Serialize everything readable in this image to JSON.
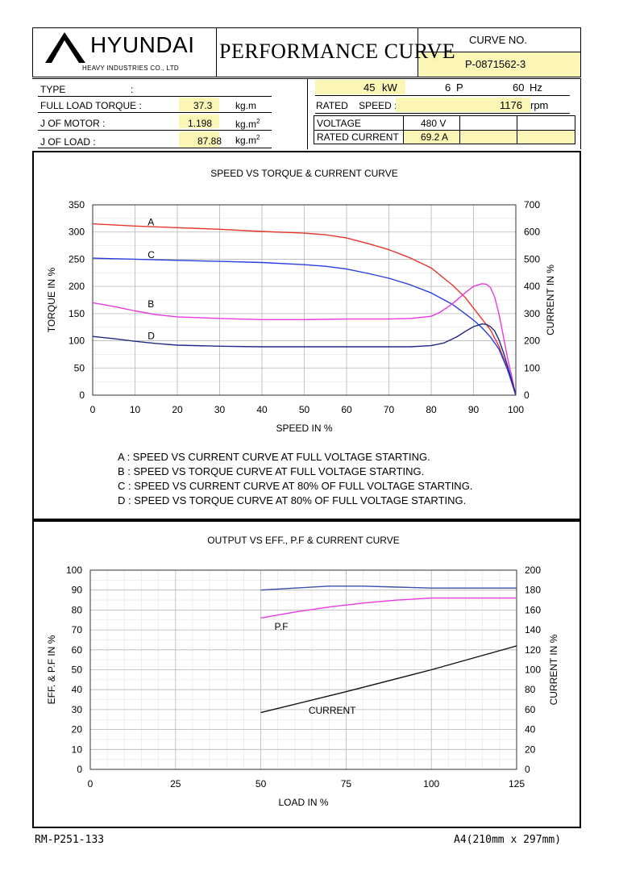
{
  "header": {
    "company": "HYUNDAI",
    "company_sub": "HEAVY INDUSTRIES CO., LTD",
    "title": "PERFORMANCE CURVE",
    "curve_no_label": "CURVE NO.",
    "curve_no": "P-0871562-3"
  },
  "specs": {
    "type_label": "TYPE",
    "type_colon": ":",
    "full_load_torque_label": "FULL LOAD TORQUE :",
    "full_load_torque_value": "37.3",
    "full_load_torque_unit": "kg.m",
    "j_motor_label": "J OF MOTOR :",
    "j_motor_value": "1.198",
    "j_motor_unit": "kg.m",
    "j_load_label": "J OF LOAD :",
    "j_load_value": "87.88",
    "j_load_unit": "kg.m",
    "unit_sup": "2",
    "kw_value": "45",
    "kw_unit": "kW",
    "poles_value": "6",
    "poles_unit": "P",
    "hz_value": "60",
    "hz_unit": "Hz",
    "rated_speed_label": "RATED    SPEED :",
    "rated_speed_value": "1176",
    "rated_speed_unit": "rpm",
    "voltage_label": "VOLTAGE",
    "voltage_value": "480 V",
    "rated_current_label": "RATED CURRENT",
    "rated_current_value": "69.2 A"
  },
  "chart_data": [
    {
      "type": "line",
      "title": "SPEED VS TORQUE & CURRENT CURVE",
      "xlabel": "SPEED IN %",
      "ylabel": "TORQUE IN %",
      "y2label": "CURRENT IN %",
      "xlim": [
        0,
        100
      ],
      "ylim": [
        0,
        350
      ],
      "y2lim": [
        0,
        700
      ],
      "xticks": [
        "0",
        "10",
        "20",
        "30",
        "40",
        "50",
        "60",
        "70",
        "80",
        "90",
        "100"
      ],
      "yticks": [
        "0",
        "50",
        "100",
        "150",
        "200",
        "250",
        "300",
        "350"
      ],
      "y2ticks": [
        "0",
        "100",
        "200",
        "300",
        "400",
        "500",
        "600",
        "700"
      ],
      "grid": true,
      "series": [
        {
          "name": "A",
          "axis": "right",
          "color": "#e8352b",
          "x": [
            0,
            10,
            20,
            30,
            40,
            50,
            55,
            60,
            65,
            70,
            75,
            80,
            85,
            88,
            90,
            92,
            94,
            96,
            98,
            100
          ],
          "y": [
            630,
            622,
            616,
            610,
            602,
            596,
            590,
            578,
            558,
            535,
            505,
            468,
            405,
            360,
            320,
            280,
            240,
            180,
            100,
            0
          ]
        },
        {
          "name": "C",
          "axis": "right",
          "color": "#2a3ee0",
          "x": [
            0,
            10,
            20,
            30,
            40,
            50,
            55,
            60,
            65,
            70,
            75,
            80,
            85,
            88,
            90,
            92,
            94,
            96,
            98,
            100
          ],
          "y": [
            504,
            500,
            496,
            492,
            488,
            480,
            474,
            464,
            448,
            430,
            406,
            376,
            334,
            300,
            276,
            248,
            214,
            170,
            95,
            0
          ]
        },
        {
          "name": "B",
          "axis": "left",
          "color": "#e83ae0",
          "x": [
            0,
            5,
            10,
            15,
            20,
            30,
            40,
            50,
            60,
            70,
            75,
            80,
            82,
            85,
            88,
            90,
            92,
            93,
            94,
            95,
            96,
            97,
            98,
            99,
            100
          ],
          "y": [
            170,
            163,
            155,
            148,
            144,
            141,
            139,
            139,
            140,
            140,
            141,
            145,
            152,
            168,
            188,
            200,
            205,
            204,
            198,
            180,
            150,
            110,
            70,
            35,
            0
          ]
        },
        {
          "name": "D",
          "axis": "left",
          "color": "#1f2a8a",
          "x": [
            0,
            5,
            10,
            15,
            20,
            30,
            40,
            50,
            60,
            70,
            75,
            80,
            83,
            86,
            88,
            90,
            92,
            93,
            94,
            95,
            96,
            97,
            98,
            99,
            100
          ],
          "y": [
            108,
            104,
            99,
            95,
            92,
            90,
            89,
            89,
            89,
            89,
            89,
            91,
            96,
            107,
            117,
            126,
            131,
            130,
            126,
            118,
            102,
            80,
            55,
            28,
            0
          ]
        }
      ],
      "annotations": [
        {
          "text": "A",
          "x": 13,
          "y": 312
        },
        {
          "text": "C",
          "x": 13,
          "y": 252
        },
        {
          "text": "B",
          "x": 13,
          "y": 162
        },
        {
          "text": "D",
          "x": 13,
          "y": 103
        }
      ],
      "notes": [
        "A : SPEED VS CURRENT CURVE AT FULL VOLTAGE STARTING.",
        "B : SPEED VS TORQUE CURVE AT FULL VOLTAGE STARTING.",
        "C : SPEED VS CURRENT CURVE AT 80% OF FULL VOLTAGE STARTING.",
        "D : SPEED VS TORQUE CURVE AT 80% OF FULL VOLTAGE STARTING."
      ]
    },
    {
      "type": "line",
      "title": "OUTPUT VS EFF., P.F & CURRENT CURVE",
      "xlabel": "LOAD IN %",
      "ylabel": "EFF. & P.F IN %",
      "y2label": "CURRENT IN %",
      "xlim": [
        0,
        125
      ],
      "ylim": [
        0,
        100
      ],
      "y2lim": [
        0,
        200
      ],
      "xticks": [
        "0",
        "25",
        "50",
        "75",
        "100",
        "125"
      ],
      "yticks": [
        "0",
        "10",
        "20",
        "30",
        "40",
        "50",
        "60",
        "70",
        "80",
        "90",
        "100"
      ],
      "y2ticks": [
        "0",
        "20",
        "40",
        "60",
        "80",
        "100",
        "120",
        "140",
        "160",
        "180",
        "200"
      ],
      "grid": true,
      "series": [
        {
          "name": "EFF",
          "axis": "left",
          "color": "#3a4fae",
          "x": [
            50,
            60,
            70,
            75,
            80,
            90,
            100,
            110,
            125
          ],
          "y": [
            90,
            91,
            92,
            92,
            92,
            91.5,
            91,
            91,
            91
          ]
        },
        {
          "name": "P.F",
          "axis": "left",
          "color": "#e83ae0",
          "x": [
            50,
            60,
            70,
            80,
            90,
            100,
            110,
            125
          ],
          "y": [
            76,
            79,
            81.5,
            83.5,
            85,
            86,
            86,
            86
          ]
        },
        {
          "name": "CURRENT",
          "axis": "right",
          "color": "#111111",
          "x": [
            50,
            75,
            100,
            125
          ],
          "y": [
            57,
            78,
            100,
            124
          ]
        }
      ],
      "annotations": [
        {
          "text": "P.F",
          "x": 54,
          "y": 70
        },
        {
          "text": "CURRENT",
          "x": 64,
          "y": 28
        }
      ]
    }
  ],
  "footer": {
    "left": "RM-P251-133",
    "right": "A4(210mm x 297mm)"
  }
}
